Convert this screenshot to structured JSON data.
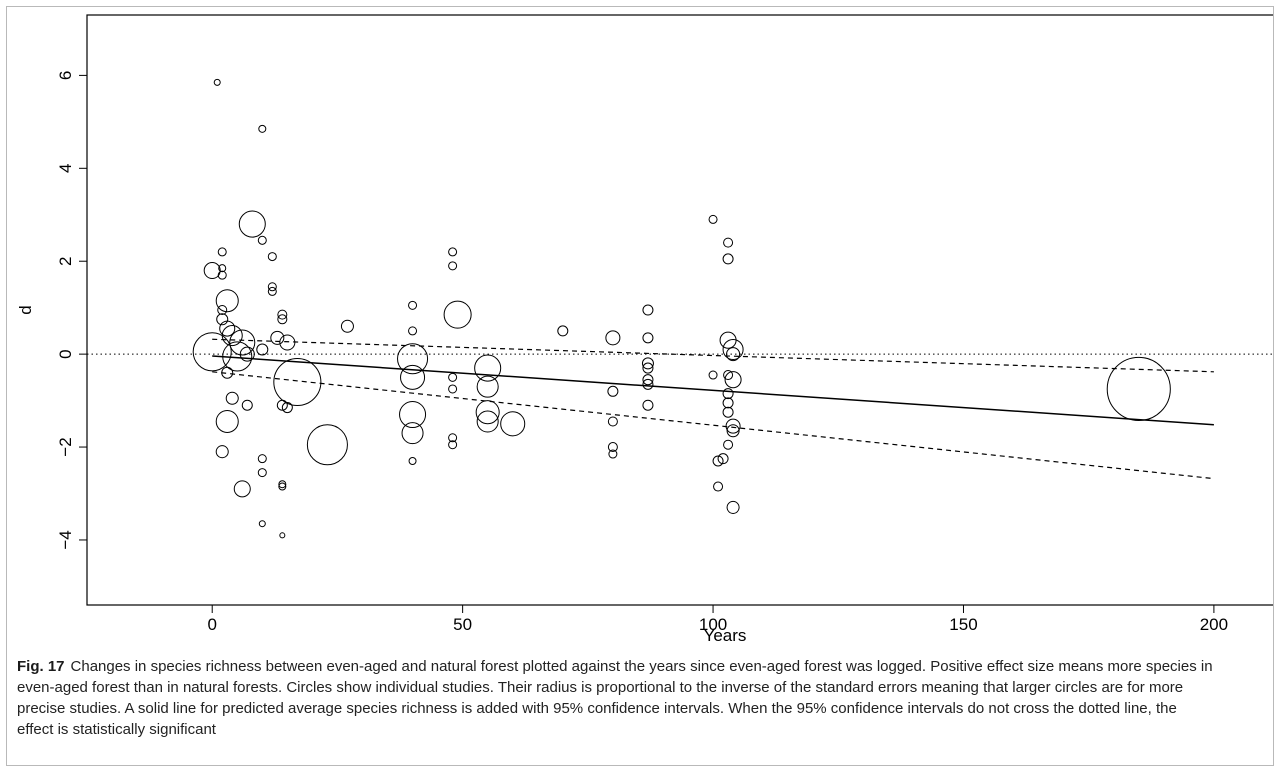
{
  "figure": {
    "label": "Fig. 17",
    "caption": "Changes in species richness between even-aged and natural forest plotted against the years since even-aged forest was logged. Positive effect size means more species in even-aged forest than in natural forests. Circles show individual studies. Their radius is proportional to the inverse of the standard errors meaning that larger circles are for more precise studies. A solid line for predicted average species richness is added with 95% confidence intervals. When the 95% confidence intervals do not cross the dotted line, the effect is statistically significant"
  },
  "chart_data": {
    "type": "scatter",
    "title": "",
    "xlabel": "Years",
    "ylabel": "d",
    "xlim": [
      -25,
      212
    ],
    "ylim": [
      -5.4,
      7.3
    ],
    "x_ticks": [
      0,
      50,
      100,
      150,
      200
    ],
    "y_ticks": [
      -4,
      -2,
      0,
      2,
      4,
      6
    ],
    "grid": false,
    "reference_line": {
      "y": 0,
      "style": "dotted"
    },
    "fit_line": {
      "x": [
        0,
        200
      ],
      "y": [
        -0.04,
        -1.52
      ],
      "style": "solid"
    },
    "ci_upper": {
      "x": [
        0,
        200
      ],
      "y": [
        0.32,
        -0.38
      ],
      "style": "dashed"
    },
    "ci_lower": {
      "x": [
        0,
        200
      ],
      "y": [
        -0.38,
        -2.68
      ],
      "style": "dashed"
    },
    "point_size_meaning": "radius proportional to inverse standard error",
    "points": [
      {
        "x": 1,
        "y": 5.85,
        "r": 0.6
      },
      {
        "x": 10,
        "y": 4.85,
        "r": 0.7
      },
      {
        "x": 8,
        "y": 2.8,
        "r": 2.6
      },
      {
        "x": 10,
        "y": 2.45,
        "r": 0.8
      },
      {
        "x": 12,
        "y": 2.1,
        "r": 0.8
      },
      {
        "x": 2,
        "y": 2.2,
        "r": 0.8
      },
      {
        "x": 2,
        "y": 1.85,
        "r": 0.7
      },
      {
        "x": 2,
        "y": 1.7,
        "r": 0.8
      },
      {
        "x": 0,
        "y": 1.8,
        "r": 1.6
      },
      {
        "x": 12,
        "y": 1.45,
        "r": 0.8
      },
      {
        "x": 12,
        "y": 1.35,
        "r": 0.8
      },
      {
        "x": 3,
        "y": 1.15,
        "r": 2.2
      },
      {
        "x": 2,
        "y": 0.95,
        "r": 0.9
      },
      {
        "x": 14,
        "y": 0.85,
        "r": 0.9
      },
      {
        "x": 14,
        "y": 0.75,
        "r": 0.9
      },
      {
        "x": 2,
        "y": 0.75,
        "r": 1.1
      },
      {
        "x": 3,
        "y": 0.55,
        "r": 1.5
      },
      {
        "x": 4,
        "y": 0.4,
        "r": 2.0
      },
      {
        "x": 6,
        "y": 0.25,
        "r": 2.5
      },
      {
        "x": 0,
        "y": 0.05,
        "r": 3.8
      },
      {
        "x": 5,
        "y": -0.05,
        "r": 2.9
      },
      {
        "x": 7,
        "y": 0.0,
        "r": 1.4
      },
      {
        "x": 10,
        "y": 0.1,
        "r": 1.1
      },
      {
        "x": 13,
        "y": 0.35,
        "r": 1.3
      },
      {
        "x": 15,
        "y": 0.25,
        "r": 1.5
      },
      {
        "x": 17,
        "y": -0.6,
        "r": 4.7
      },
      {
        "x": 27,
        "y": 0.6,
        "r": 1.2
      },
      {
        "x": 3,
        "y": -0.4,
        "r": 1.1
      },
      {
        "x": 4,
        "y": -0.95,
        "r": 1.2
      },
      {
        "x": 7,
        "y": -1.1,
        "r": 1.0
      },
      {
        "x": 3,
        "y": -1.45,
        "r": 2.2
      },
      {
        "x": 2,
        "y": -2.1,
        "r": 1.2
      },
      {
        "x": 6,
        "y": -2.9,
        "r": 1.6
      },
      {
        "x": 14,
        "y": -1.1,
        "r": 1.0
      },
      {
        "x": 15,
        "y": -1.15,
        "r": 1.0
      },
      {
        "x": 10,
        "y": -2.25,
        "r": 0.8
      },
      {
        "x": 10,
        "y": -2.55,
        "r": 0.8
      },
      {
        "x": 14,
        "y": -2.8,
        "r": 0.7
      },
      {
        "x": 14,
        "y": -2.85,
        "r": 0.7
      },
      {
        "x": 10,
        "y": -3.65,
        "r": 0.6
      },
      {
        "x": 14,
        "y": -3.9,
        "r": 0.5
      },
      {
        "x": 23,
        "y": -1.95,
        "r": 4.0
      },
      {
        "x": 40,
        "y": 1.05,
        "r": 0.8
      },
      {
        "x": 40,
        "y": 0.5,
        "r": 0.8
      },
      {
        "x": 40,
        "y": -0.1,
        "r": 3.0
      },
      {
        "x": 40,
        "y": -0.5,
        "r": 2.4
      },
      {
        "x": 40,
        "y": -1.3,
        "r": 2.6
      },
      {
        "x": 40,
        "y": -1.7,
        "r": 2.1
      },
      {
        "x": 40,
        "y": -2.3,
        "r": 0.7
      },
      {
        "x": 48,
        "y": 2.2,
        "r": 0.8
      },
      {
        "x": 48,
        "y": 1.9,
        "r": 0.8
      },
      {
        "x": 48,
        "y": -0.5,
        "r": 0.8
      },
      {
        "x": 48,
        "y": -0.75,
        "r": 0.8
      },
      {
        "x": 48,
        "y": -1.8,
        "r": 0.8
      },
      {
        "x": 48,
        "y": -1.95,
        "r": 0.8
      },
      {
        "x": 49,
        "y": 0.85,
        "r": 2.7
      },
      {
        "x": 55,
        "y": -0.3,
        "r": 2.6
      },
      {
        "x": 55,
        "y": -0.7,
        "r": 2.1
      },
      {
        "x": 55,
        "y": -1.25,
        "r": 2.3
      },
      {
        "x": 55,
        "y": -1.45,
        "r": 2.1
      },
      {
        "x": 60,
        "y": -1.5,
        "r": 2.4
      },
      {
        "x": 70,
        "y": 0.5,
        "r": 1.0
      },
      {
        "x": 80,
        "y": 0.35,
        "r": 1.4
      },
      {
        "x": 80,
        "y": -0.8,
        "r": 1.0
      },
      {
        "x": 80,
        "y": -1.45,
        "r": 0.9
      },
      {
        "x": 80,
        "y": -2.0,
        "r": 0.9
      },
      {
        "x": 80,
        "y": -2.15,
        "r": 0.8
      },
      {
        "x": 87,
        "y": 0.95,
        "r": 1.0
      },
      {
        "x": 87,
        "y": 0.35,
        "r": 1.0
      },
      {
        "x": 87,
        "y": -0.2,
        "r": 1.1
      },
      {
        "x": 87,
        "y": -0.3,
        "r": 1.0
      },
      {
        "x": 87,
        "y": -0.55,
        "r": 1.0
      },
      {
        "x": 87,
        "y": -0.65,
        "r": 1.0
      },
      {
        "x": 87,
        "y": -1.1,
        "r": 1.0
      },
      {
        "x": 100,
        "y": 2.9,
        "r": 0.8
      },
      {
        "x": 100,
        "y": -0.45,
        "r": 0.8
      },
      {
        "x": 101,
        "y": -2.3,
        "r": 1.0
      },
      {
        "x": 101,
        "y": -2.85,
        "r": 0.9
      },
      {
        "x": 103,
        "y": 2.4,
        "r": 0.9
      },
      {
        "x": 103,
        "y": 2.05,
        "r": 1.0
      },
      {
        "x": 103,
        "y": 0.3,
        "r": 1.6
      },
      {
        "x": 104,
        "y": 0.1,
        "r": 2.0
      },
      {
        "x": 104,
        "y": 0.0,
        "r": 1.3
      },
      {
        "x": 103,
        "y": -0.45,
        "r": 0.9
      },
      {
        "x": 104,
        "y": -0.55,
        "r": 1.6
      },
      {
        "x": 103,
        "y": -0.85,
        "r": 1.0
      },
      {
        "x": 103,
        "y": -1.05,
        "r": 1.0
      },
      {
        "x": 103,
        "y": -1.25,
        "r": 1.0
      },
      {
        "x": 104,
        "y": -1.55,
        "r": 1.4
      },
      {
        "x": 104,
        "y": -1.65,
        "r": 1.2
      },
      {
        "x": 103,
        "y": -1.95,
        "r": 0.9
      },
      {
        "x": 102,
        "y": -2.25,
        "r": 1.0
      },
      {
        "x": 104,
        "y": -3.3,
        "r": 1.2
      },
      {
        "x": 185,
        "y": -0.75,
        "r": 6.3
      }
    ]
  }
}
